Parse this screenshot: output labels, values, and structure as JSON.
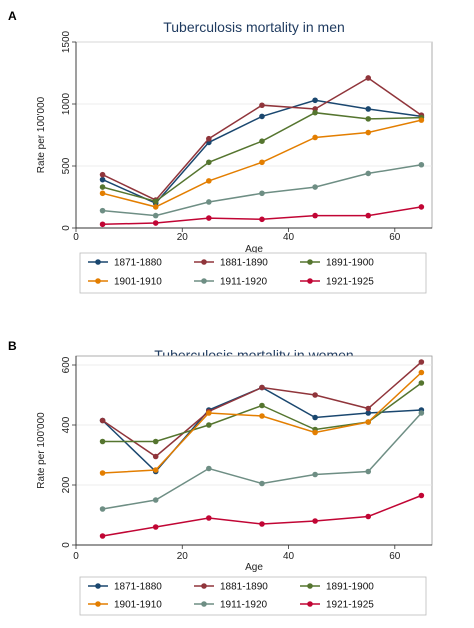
{
  "chart_data": [
    {
      "panel": "A",
      "type": "line",
      "title": "Tuberculosis mortality in men",
      "xlabel": "Age",
      "ylabel": "Rate per 100'000",
      "xlim": [
        0,
        67
      ],
      "ylim": [
        0,
        1500
      ],
      "xticks": [
        0,
        20,
        40,
        60
      ],
      "yticks": [
        0,
        500,
        1000,
        1500
      ],
      "grid": true,
      "legend": "bottom",
      "x": [
        5,
        15,
        25,
        35,
        45,
        55,
        65
      ],
      "series": [
        {
          "name": "1871-1880",
          "color": "#1a476f",
          "values": [
            390,
            200,
            690,
            900,
            1030,
            960,
            900
          ]
        },
        {
          "name": "1881-1890",
          "color": "#90353b",
          "values": [
            430,
            225,
            720,
            990,
            960,
            1210,
            910
          ]
        },
        {
          "name": "1891-1900",
          "color": "#55752f",
          "values": [
            330,
            215,
            530,
            700,
            930,
            880,
            890
          ]
        },
        {
          "name": "1901-1910",
          "color": "#e37e00",
          "values": [
            280,
            170,
            380,
            530,
            730,
            770,
            870
          ]
        },
        {
          "name": "1911-1920",
          "color": "#6e8e84",
          "values": [
            140,
            100,
            210,
            280,
            330,
            440,
            510
          ]
        },
        {
          "name": "1921-1925",
          "color": "#c10534",
          "values": [
            30,
            40,
            80,
            70,
            100,
            100,
            170
          ]
        }
      ]
    },
    {
      "panel": "B",
      "type": "line",
      "title": "Tuberculosis mortality in women",
      "xlabel": "Age",
      "ylabel": "Rate per 100'000",
      "xlim": [
        0,
        67
      ],
      "ylim": [
        0,
        630
      ],
      "xticks": [
        0,
        20,
        40,
        60
      ],
      "yticks": [
        0,
        200,
        400,
        600
      ],
      "grid": true,
      "legend": "bottom",
      "x": [
        5,
        15,
        25,
        35,
        45,
        55,
        65
      ],
      "series": [
        {
          "name": "1871-1880",
          "color": "#1a476f",
          "values": [
            415,
            245,
            450,
            525,
            425,
            440,
            450
          ]
        },
        {
          "name": "1881-1890",
          "color": "#90353b",
          "values": [
            415,
            295,
            445,
            525,
            500,
            455,
            610
          ]
        },
        {
          "name": "1891-1900",
          "color": "#55752f",
          "values": [
            345,
            345,
            400,
            465,
            385,
            410,
            540
          ]
        },
        {
          "name": "1901-1910",
          "color": "#e37e00",
          "values": [
            240,
            250,
            440,
            430,
            375,
            410,
            575
          ]
        },
        {
          "name": "1911-1920",
          "color": "#6e8e84",
          "values": [
            120,
            150,
            255,
            205,
            235,
            245,
            440
          ]
        },
        {
          "name": "1921-1925",
          "color": "#c10534",
          "values": [
            30,
            60,
            90,
            70,
            80,
            95,
            165
          ]
        }
      ]
    }
  ]
}
